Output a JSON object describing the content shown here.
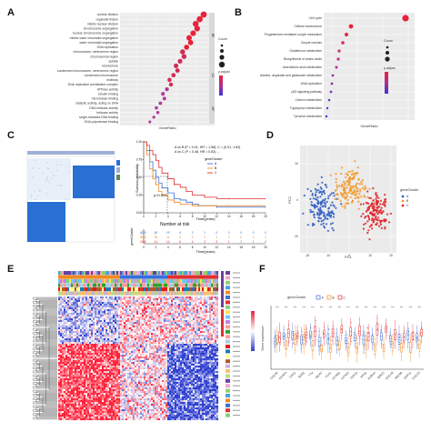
{
  "panels": {
    "a": "A",
    "b": "B",
    "c": "C",
    "d": "D",
    "e": "E",
    "f": "F"
  },
  "panel_a": {
    "section_labels": [
      "BP",
      "CC",
      "MF"
    ],
    "x_axis_label": "GeneRatio",
    "legend_count_title": "Count",
    "legend_padjust_title": "p.adjust",
    "terms": [
      "nuclear division",
      "organelle fission",
      "mitotic nuclear division",
      "chromosome segregation",
      "nuclear chromosome segregation",
      "mitotic sister chromatid segregation",
      "sister chromatid segregation",
      "DNA replication",
      "chromosome, centromeric region",
      "chromosomal region",
      "spindle",
      "kinetochore",
      "condensed chromosome, centromeric region",
      "condensed chromosome",
      "midbody",
      "DNA replication preinitiation complex",
      "ATPase activity",
      "tubulin binding",
      "microtubule binding",
      "catalytic activity, acting on DNA",
      "DNA helicase activity",
      "helicase activity",
      "single-stranded DNA binding",
      "DNA polymerase binding"
    ]
  },
  "panel_b": {
    "x_axis_label": "GeneRatio",
    "legend_count_title": "Count",
    "legend_padjust_title": "p.adjust",
    "terms": [
      "Cell cycle",
      "Cellular senescence",
      "Progesterone-mediated oocyte maturation",
      "Oocyte meiosis",
      "Glutathione metabolism",
      "Biosynthesis of amino acids",
      "Arachidonic acid metabolism",
      "Alanine, aspartate and glutamate metabolism",
      "DNA replication",
      "p53 signaling pathway",
      "Carbon metabolism",
      "Tryptophan metabolism",
      "Tyrosine metabolism"
    ]
  },
  "panel_c": {
    "y_axis_label": "Survival probability",
    "x_axis_label": "Time(years)",
    "stat_line1": "A vs B (P = 0.01, HR = 1.58); C = (0.01, 1.63)",
    "stat_line2": "A vs C (P = 0.48, HR = 0.83) ...",
    "p_value": "p<0.001",
    "legend_title": "geneCluster",
    "legend_items": [
      "A",
      "B",
      "C"
    ],
    "risk_title": "Number at risk",
    "risk_table_ylabel": "geneCluster",
    "risk_x_axis_label": "Time(years)",
    "risk_rows": [
      [
        "A",
        "229",
        "69",
        "19",
        "6",
        "2",
        "1",
        "0",
        "0",
        "0",
        "0",
        "0"
      ],
      [
        "B",
        "118",
        "28",
        "11",
        "4",
        "2",
        "1",
        "1",
        "0",
        "0",
        "0",
        "0"
      ],
      [
        "C",
        "106",
        "41",
        "14",
        "6",
        "4",
        "3",
        "3",
        "1",
        "1",
        "1",
        "0"
      ]
    ],
    "x_ticks": [
      "0",
      "2",
      "4",
      "6",
      "8",
      "10",
      "12",
      "14",
      "16",
      "18",
      "20"
    ],
    "y_ticks": [
      "0.00",
      "0.25",
      "0.50",
      "0.75",
      "1.00"
    ],
    "colors": {
      "A": "#3a6fd8",
      "B": "#f28c28",
      "C": "#e03030"
    }
  },
  "panel_d": {
    "x_axis_label": "PC1",
    "y_axis_label": "PC2",
    "legend_title": "geneCluster",
    "legend_items": [
      "A",
      "B",
      "C"
    ],
    "x_ticks": [
      "-20",
      "-10",
      "0",
      "10",
      "20"
    ],
    "y_ticks": [
      "-20",
      "0",
      "20"
    ],
    "colors": {
      "A": "#2f5fc7",
      "B": "#f39b2c",
      "C": "#e0262b"
    }
  },
  "panel_f": {
    "legend_title": "geneCluster",
    "legend_items": [
      "A",
      "B",
      "C"
    ],
    "y_axis_label": "Gene expression",
    "genes": [
      "CDC20",
      "CENPA",
      "CDK1",
      "BUB1",
      "TTK",
      "MKI67",
      "PLK1",
      "CCNB1",
      "CCNA2",
      "TOP2A",
      "KIF11",
      "AURKA",
      "BIRC5",
      "CDCA8",
      "NDC80",
      "ESPL1",
      "CDCA3"
    ],
    "colors": {
      "A": "#3a6fd8",
      "B": "#f28c28",
      "C": "#e03030"
    }
  }
}
